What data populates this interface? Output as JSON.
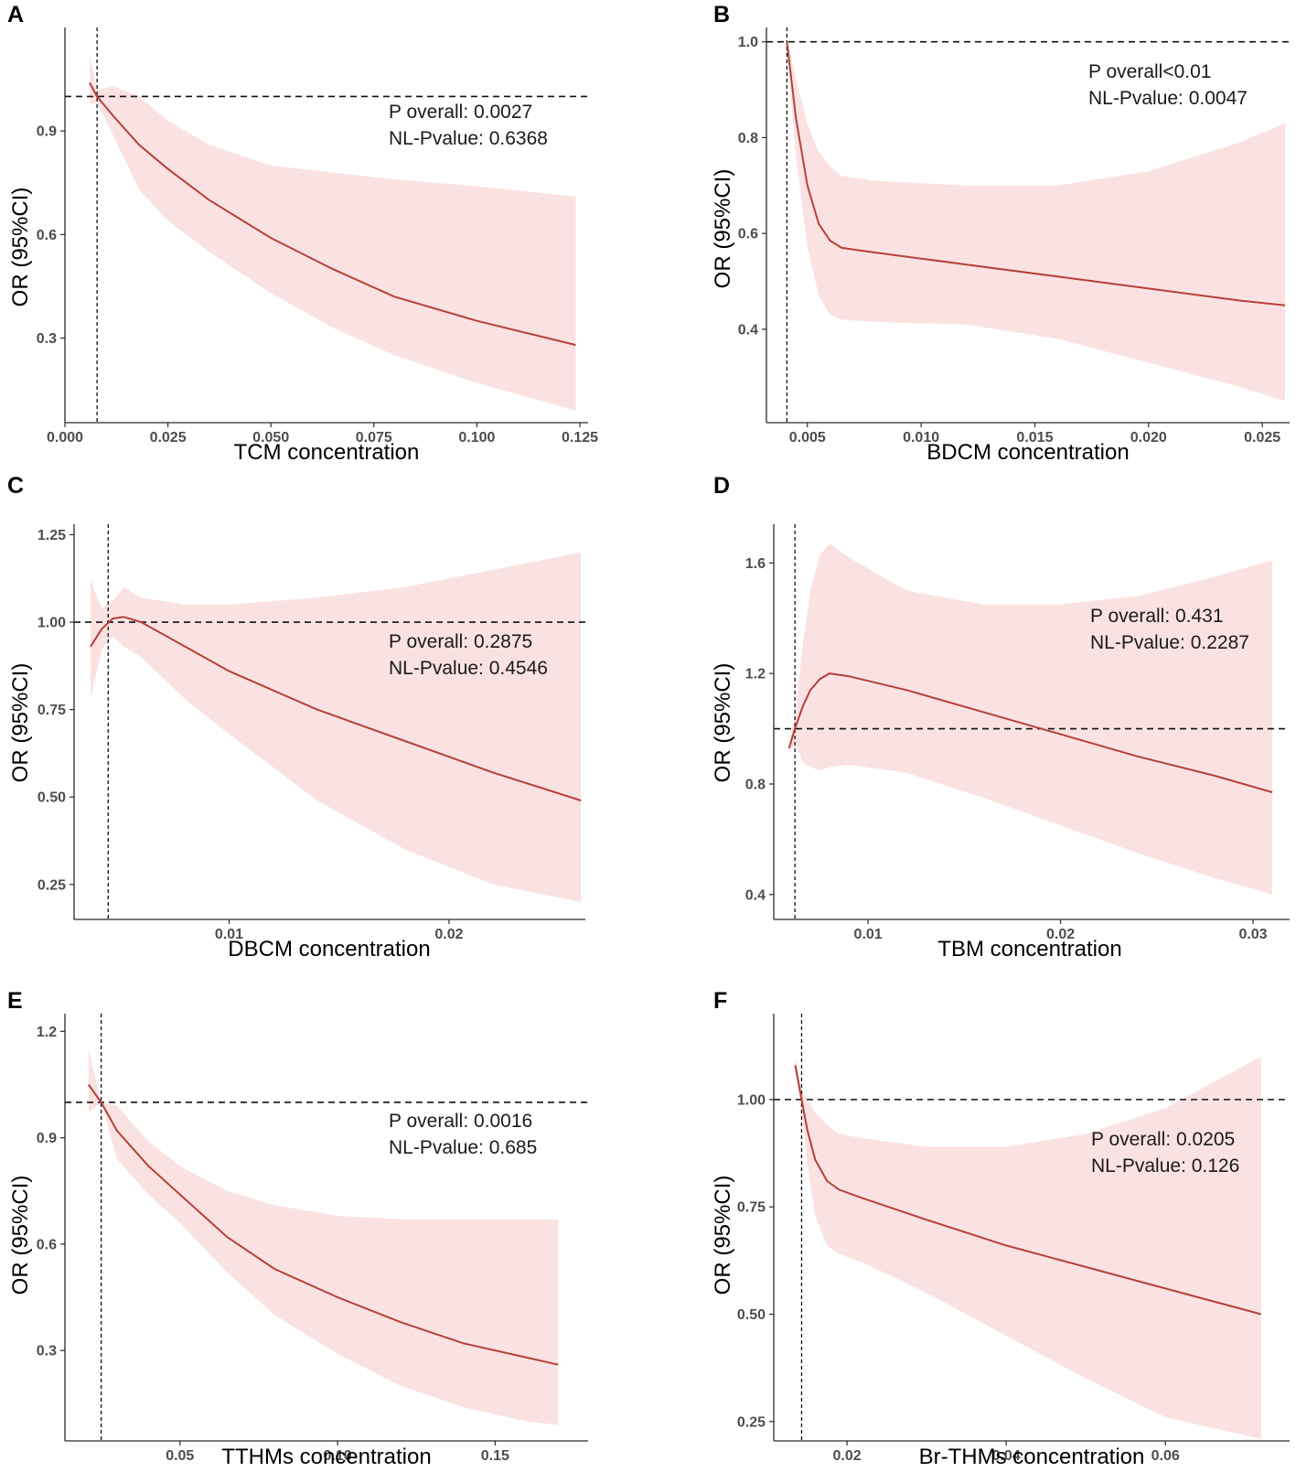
{
  "chart_data": [
    {
      "panel": "A",
      "type": "line",
      "xlabel": "TCM concentration",
      "ylabel": "OR (95%CI)",
      "xlim": [
        0.0,
        0.127
      ],
      "ylim": [
        0.055,
        1.2
      ],
      "xticks": [
        0.0,
        0.025,
        0.05,
        0.075,
        0.1,
        0.125
      ],
      "xtick_labels": [
        "0.000",
        "0.025",
        "0.050",
        "0.075",
        "0.100",
        "0.125"
      ],
      "yticks": [
        0.3,
        0.6,
        0.9
      ],
      "ytick_labels": [
        "0.3",
        "0.6",
        "0.9"
      ],
      "reference_y": 1.0,
      "reference_x": 0.0078,
      "annotation": [
        "P    overall: 0.0027",
        "NL-Pvalue: 0.6368"
      ],
      "series": [
        {
          "name": "OR",
          "x": [
            0.006,
            0.0078,
            0.012,
            0.018,
            0.025,
            0.035,
            0.05,
            0.065,
            0.08,
            0.1,
            0.124
          ],
          "y": [
            1.04,
            1.0,
            0.94,
            0.86,
            0.79,
            0.7,
            0.59,
            0.5,
            0.42,
            0.35,
            0.28
          ]
        },
        {
          "name": "CI upper",
          "x": [
            0.006,
            0.0078,
            0.012,
            0.018,
            0.025,
            0.035,
            0.05,
            0.065,
            0.08,
            0.1,
            0.124
          ],
          "y": [
            1.12,
            1.02,
            1.03,
            1.0,
            0.93,
            0.86,
            0.8,
            0.78,
            0.76,
            0.74,
            0.71
          ]
        },
        {
          "name": "CI lower",
          "x": [
            0.006,
            0.0078,
            0.012,
            0.018,
            0.025,
            0.035,
            0.05,
            0.065,
            0.08,
            0.1,
            0.124
          ],
          "y": [
            0.98,
            0.98,
            0.88,
            0.73,
            0.64,
            0.55,
            0.43,
            0.33,
            0.25,
            0.17,
            0.09
          ]
        }
      ]
    },
    {
      "panel": "B",
      "type": "line",
      "xlabel": "BDCM concentration",
      "ylabel": "OR (95%CI)",
      "xlim": [
        0.0032,
        0.0262
      ],
      "ylim": [
        0.205,
        1.03
      ],
      "xticks": [
        0.005,
        0.01,
        0.015,
        0.02,
        0.025
      ],
      "xtick_labels": [
        "0.005",
        "0.010",
        "0.015",
        "0.020",
        "0.025"
      ],
      "yticks": [
        0.4,
        0.6,
        0.8,
        1.0
      ],
      "ytick_labels": [
        "0.4",
        "0.6",
        "0.8",
        "1.0"
      ],
      "reference_y": 1.0,
      "reference_x": 0.0041,
      "annotation": [
        "P overall<0.01",
        "NL-Pvalue: 0.0047"
      ],
      "series": [
        {
          "name": "OR",
          "x": [
            0.0041,
            0.0045,
            0.005,
            0.0055,
            0.006,
            0.0065,
            0.008,
            0.012,
            0.016,
            0.02,
            0.024,
            0.026
          ],
          "y": [
            1.0,
            0.84,
            0.7,
            0.62,
            0.585,
            0.57,
            0.56,
            0.535,
            0.51,
            0.485,
            0.46,
            0.45
          ]
        },
        {
          "name": "CI upper",
          "x": [
            0.0041,
            0.0045,
            0.005,
            0.0055,
            0.006,
            0.0065,
            0.008,
            0.012,
            0.016,
            0.02,
            0.024,
            0.026
          ],
          "y": [
            1.01,
            0.92,
            0.83,
            0.77,
            0.74,
            0.72,
            0.71,
            0.7,
            0.7,
            0.73,
            0.79,
            0.83
          ]
        },
        {
          "name": "CI lower",
          "x": [
            0.0041,
            0.0045,
            0.005,
            0.0055,
            0.006,
            0.0065,
            0.008,
            0.012,
            0.016,
            0.02,
            0.024,
            0.026
          ],
          "y": [
            0.99,
            0.76,
            0.57,
            0.47,
            0.43,
            0.42,
            0.415,
            0.41,
            0.38,
            0.33,
            0.28,
            0.25
          ]
        }
      ]
    },
    {
      "panel": "C",
      "type": "line",
      "xlabel": "DBCM concentration",
      "ylabel": "OR (95%CI)",
      "xlim": [
        0.00295,
        0.0262
      ],
      "ylim": [
        0.15,
        1.28
      ],
      "xticks": [
        0.01,
        0.02
      ],
      "xtick_labels": [
        "0.01",
        "0.02"
      ],
      "yticks": [
        0.25,
        0.5,
        0.75,
        1.0,
        1.25
      ],
      "ytick_labels": [
        "0.25",
        "0.50",
        "0.75",
        "1.00",
        "1.25"
      ],
      "reference_y": 1.0,
      "reference_x": 0.0045,
      "annotation": [
        "P    overall: 0.2875",
        "NL-Pvalue: 0.4546"
      ],
      "series": [
        {
          "name": "OR",
          "x": [
            0.0037,
            0.0042,
            0.0047,
            0.0052,
            0.006,
            0.008,
            0.01,
            0.014,
            0.018,
            0.022,
            0.026
          ],
          "y": [
            0.93,
            0.98,
            1.01,
            1.015,
            1.0,
            0.93,
            0.86,
            0.75,
            0.66,
            0.57,
            0.49
          ]
        },
        {
          "name": "CI upper",
          "x": [
            0.0037,
            0.0042,
            0.0047,
            0.0052,
            0.006,
            0.008,
            0.01,
            0.014,
            0.018,
            0.022,
            0.026
          ],
          "y": [
            1.12,
            1.04,
            1.06,
            1.1,
            1.07,
            1.05,
            1.05,
            1.07,
            1.1,
            1.15,
            1.2
          ]
        },
        {
          "name": "CI lower",
          "x": [
            0.0037,
            0.0042,
            0.0047,
            0.0052,
            0.006,
            0.008,
            0.01,
            0.014,
            0.018,
            0.022,
            0.026
          ],
          "y": [
            0.78,
            0.92,
            0.96,
            0.93,
            0.9,
            0.78,
            0.68,
            0.49,
            0.35,
            0.25,
            0.2
          ]
        }
      ]
    },
    {
      "panel": "D",
      "type": "line",
      "xlabel": "TBM concentration",
      "ylabel": "OR (95%CI)",
      "xlim": [
        0.0051,
        0.0319
      ],
      "ylim": [
        0.31,
        1.74
      ],
      "xticks": [
        0.01,
        0.02,
        0.03
      ],
      "xtick_labels": [
        "0.01",
        "0.02",
        "0.03"
      ],
      "yticks": [
        0.4,
        0.8,
        1.2,
        1.6
      ],
      "ytick_labels": [
        "0.4",
        "0.8",
        "1.2",
        "1.6"
      ],
      "reference_y": 1.0,
      "reference_x": 0.0062,
      "annotation": [
        "P    overall: 0.431",
        "NL-Pvalue: 0.2287"
      ],
      "series": [
        {
          "name": "OR",
          "x": [
            0.0059,
            0.0062,
            0.0066,
            0.007,
            0.0075,
            0.008,
            0.009,
            0.012,
            0.016,
            0.02,
            0.024,
            0.028,
            0.031
          ],
          "y": [
            0.93,
            1.0,
            1.08,
            1.14,
            1.18,
            1.2,
            1.19,
            1.14,
            1.06,
            0.98,
            0.9,
            0.83,
            0.77
          ]
        },
        {
          "name": "CI upper",
          "x": [
            0.0059,
            0.0062,
            0.0066,
            0.007,
            0.0075,
            0.008,
            0.009,
            0.012,
            0.016,
            0.02,
            0.024,
            0.028,
            0.031
          ],
          "y": [
            0.95,
            1.05,
            1.3,
            1.5,
            1.63,
            1.67,
            1.62,
            1.5,
            1.45,
            1.45,
            1.48,
            1.55,
            1.61
          ]
        },
        {
          "name": "CI lower",
          "x": [
            0.0059,
            0.0062,
            0.0066,
            0.007,
            0.0075,
            0.008,
            0.009,
            0.012,
            0.016,
            0.02,
            0.024,
            0.028,
            0.031
          ],
          "y": [
            0.91,
            0.95,
            0.88,
            0.86,
            0.85,
            0.86,
            0.87,
            0.84,
            0.75,
            0.65,
            0.55,
            0.46,
            0.4
          ]
        }
      ]
    },
    {
      "panel": "E",
      "type": "line",
      "xlabel": "TTHMs concentration",
      "ylabel": "OR (95%CI)",
      "xlim": [
        0.0135,
        0.1795
      ],
      "ylim": [
        0.045,
        1.25
      ],
      "xticks": [
        0.05,
        0.1,
        0.15
      ],
      "xtick_labels": [
        "0.05",
        "0.10",
        "0.15"
      ],
      "yticks": [
        0.3,
        0.6,
        0.9,
        1.2
      ],
      "ytick_labels": [
        "0.3",
        "0.6",
        "0.9",
        "1.2"
      ],
      "reference_y": 1.0,
      "reference_x": 0.025,
      "annotation": [
        "P    overall: 0.0016",
        "NL-Pvalue: 0.685"
      ],
      "series": [
        {
          "name": "OR",
          "x": [
            0.021,
            0.025,
            0.03,
            0.04,
            0.05,
            0.065,
            0.08,
            0.1,
            0.12,
            0.14,
            0.16,
            0.17
          ],
          "y": [
            1.05,
            1.0,
            0.92,
            0.82,
            0.74,
            0.62,
            0.53,
            0.45,
            0.38,
            0.32,
            0.28,
            0.26
          ]
        },
        {
          "name": "CI upper",
          "x": [
            0.021,
            0.025,
            0.03,
            0.04,
            0.05,
            0.065,
            0.08,
            0.1,
            0.12,
            0.14,
            0.16,
            0.17
          ],
          "y": [
            1.15,
            1.0,
            0.99,
            0.89,
            0.82,
            0.75,
            0.71,
            0.68,
            0.67,
            0.67,
            0.67,
            0.67
          ]
        },
        {
          "name": "CI lower",
          "x": [
            0.021,
            0.025,
            0.03,
            0.04,
            0.05,
            0.065,
            0.08,
            0.1,
            0.12,
            0.14,
            0.16,
            0.17
          ],
          "y": [
            0.97,
            1.0,
            0.84,
            0.74,
            0.66,
            0.52,
            0.4,
            0.29,
            0.2,
            0.14,
            0.1,
            0.09
          ]
        }
      ]
    },
    {
      "panel": "F",
      "type": "line",
      "xlabel": "Br-THMs concentration",
      "ylabel": "OR (95%CI)",
      "xlim": [
        0.0108,
        0.0756
      ],
      "ylim": [
        0.205,
        1.2
      ],
      "xticks": [
        0.02,
        0.04,
        0.06
      ],
      "xtick_labels": [
        "0.02",
        "0.04",
        "0.06"
      ],
      "yticks": [
        0.25,
        0.5,
        0.75,
        1.0
      ],
      "ytick_labels": [
        "0.25",
        "0.50",
        "0.75",
        "1.00"
      ],
      "reference_y": 1.0,
      "reference_x": 0.0143,
      "annotation": [
        "P    overall: 0.0205",
        "NL-Pvalue: 0.126"
      ],
      "series": [
        {
          "name": "OR",
          "x": [
            0.0135,
            0.0143,
            0.015,
            0.016,
            0.0175,
            0.019,
            0.022,
            0.03,
            0.04,
            0.05,
            0.06,
            0.072
          ],
          "y": [
            1.08,
            1.0,
            0.93,
            0.86,
            0.81,
            0.79,
            0.77,
            0.72,
            0.66,
            0.61,
            0.56,
            0.5
          ]
        },
        {
          "name": "CI upper",
          "x": [
            0.0135,
            0.0143,
            0.015,
            0.016,
            0.0175,
            0.019,
            0.022,
            0.03,
            0.04,
            0.05,
            0.06,
            0.072
          ],
          "y": [
            1.1,
            1.02,
            1.0,
            0.97,
            0.94,
            0.92,
            0.91,
            0.89,
            0.89,
            0.92,
            0.98,
            1.1
          ]
        },
        {
          "name": "CI lower",
          "x": [
            0.0135,
            0.0143,
            0.015,
            0.016,
            0.0175,
            0.019,
            0.022,
            0.03,
            0.04,
            0.05,
            0.06,
            0.072
          ],
          "y": [
            1.06,
            0.98,
            0.85,
            0.73,
            0.66,
            0.64,
            0.62,
            0.55,
            0.45,
            0.35,
            0.26,
            0.21
          ]
        }
      ]
    }
  ],
  "colors": {
    "line": "#b5403a",
    "band": "#fbe2e2",
    "axis": "#2b2b2b",
    "reference": "#111111"
  }
}
